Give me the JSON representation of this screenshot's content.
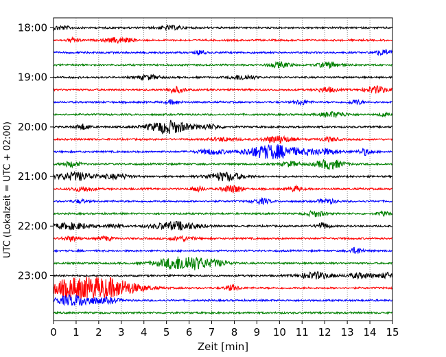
{
  "chart_data": {
    "type": "line",
    "title": "",
    "xlabel": "Zeit  [min]",
    "ylabel": "UTC (Lokalzeit = UTC + 02:00)",
    "xlim": [
      0,
      15
    ],
    "x_ticks": [
      "0",
      "1",
      "2",
      "3",
      "4",
      "5",
      "6",
      "7",
      "8",
      "9",
      "10",
      "11",
      "12",
      "13",
      "14",
      "15"
    ],
    "y_tick_labels": [
      "18:00",
      "19:00",
      "20:00",
      "21:00",
      "22:00",
      "23:00"
    ],
    "grid": "vertical dotted",
    "trace_interval_minutes": 15,
    "trace_start": "18:00",
    "trace_colors": [
      "#000000",
      "#ff0000",
      "#0000ff",
      "#008000"
    ],
    "traces": [
      {
        "start": "18:00",
        "bursts": [
          {
            "t": 0.3,
            "amp": 0.35,
            "dur": 0.4
          },
          {
            "t": 5.2,
            "amp": 0.3,
            "dur": 0.6
          }
        ]
      },
      {
        "start": "18:15",
        "bursts": [
          {
            "t": 0.9,
            "amp": 0.3,
            "dur": 0.3
          },
          {
            "t": 2.9,
            "amp": 0.45,
            "dur": 0.6
          }
        ]
      },
      {
        "start": "18:30",
        "bursts": [
          {
            "t": 6.5,
            "amp": 0.45,
            "dur": 0.2
          },
          {
            "t": 14.6,
            "amp": 0.45,
            "dur": 0.4
          }
        ]
      },
      {
        "start": "18:45",
        "bursts": [
          {
            "t": 10.0,
            "amp": 0.45,
            "dur": 0.5
          },
          {
            "t": 12.2,
            "amp": 0.5,
            "dur": 0.5
          }
        ]
      },
      {
        "start": "19:00",
        "bursts": [
          {
            "t": 4.2,
            "amp": 0.4,
            "dur": 0.5
          },
          {
            "t": 8.4,
            "amp": 0.45,
            "dur": 0.5
          }
        ]
      },
      {
        "start": "19:15",
        "bursts": [
          {
            "t": 5.4,
            "amp": 0.5,
            "dur": 0.4
          },
          {
            "t": 12.1,
            "amp": 0.45,
            "dur": 0.4
          },
          {
            "t": 14.3,
            "amp": 0.6,
            "dur": 0.5
          }
        ]
      },
      {
        "start": "19:30",
        "bursts": [
          {
            "t": 5.3,
            "amp": 0.35,
            "dur": 0.3
          },
          {
            "t": 11.0,
            "amp": 0.45,
            "dur": 0.3
          },
          {
            "t": 13.4,
            "amp": 0.4,
            "dur": 0.3
          }
        ]
      },
      {
        "start": "19:45",
        "bursts": [
          {
            "t": 12.4,
            "amp": 0.45,
            "dur": 0.6
          },
          {
            "t": 14.6,
            "amp": 0.35,
            "dur": 0.2
          }
        ]
      },
      {
        "start": "20:00",
        "bursts": [
          {
            "t": 1.3,
            "amp": 0.5,
            "dur": 0.3
          },
          {
            "t": 5.1,
            "amp": 1.15,
            "dur": 0.9
          },
          {
            "t": 6.9,
            "amp": 0.4,
            "dur": 0.5
          }
        ]
      },
      {
        "start": "20:15",
        "bursts": [
          {
            "t": 7.5,
            "amp": 0.3,
            "dur": 0.6
          },
          {
            "t": 9.9,
            "amp": 0.65,
            "dur": 0.6
          },
          {
            "t": 12.2,
            "amp": 0.35,
            "dur": 0.4
          }
        ]
      },
      {
        "start": "20:30",
        "bursts": [
          {
            "t": 7.0,
            "amp": 0.45,
            "dur": 0.6
          },
          {
            "t": 9.7,
            "amp": 1.25,
            "dur": 1.2
          },
          {
            "t": 11.9,
            "amp": 0.5,
            "dur": 0.8
          },
          {
            "t": 13.8,
            "amp": 0.55,
            "dur": 0.3
          }
        ]
      },
      {
        "start": "20:45",
        "bursts": [
          {
            "t": 0.8,
            "amp": 0.45,
            "dur": 0.4
          },
          {
            "t": 10.5,
            "amp": 0.45,
            "dur": 0.4
          },
          {
            "t": 12.2,
            "amp": 0.85,
            "dur": 0.6
          }
        ]
      },
      {
        "start": "21:00",
        "bursts": [
          {
            "t": 1.0,
            "amp": 0.7,
            "dur": 0.9
          },
          {
            "t": 2.8,
            "amp": 0.4,
            "dur": 0.6
          },
          {
            "t": 7.6,
            "amp": 0.75,
            "dur": 0.8
          }
        ]
      },
      {
        "start": "21:15",
        "bursts": [
          {
            "t": 1.3,
            "amp": 0.4,
            "dur": 0.5
          },
          {
            "t": 6.4,
            "amp": 0.45,
            "dur": 0.3
          },
          {
            "t": 7.7,
            "amp": 0.5,
            "dur": 0.3
          },
          {
            "t": 8.1,
            "amp": 0.5,
            "dur": 0.3
          },
          {
            "t": 10.7,
            "amp": 0.45,
            "dur": 0.3
          }
        ]
      },
      {
        "start": "21:30",
        "bursts": [
          {
            "t": 1.2,
            "amp": 0.3,
            "dur": 0.3
          },
          {
            "t": 9.2,
            "amp": 0.45,
            "dur": 0.4
          },
          {
            "t": 12.1,
            "amp": 0.4,
            "dur": 0.4
          }
        ]
      },
      {
        "start": "21:45",
        "bursts": [
          {
            "t": 11.6,
            "amp": 0.5,
            "dur": 0.4
          },
          {
            "t": 14.6,
            "amp": 0.3,
            "dur": 0.3
          }
        ]
      },
      {
        "start": "22:00",
        "bursts": [
          {
            "t": 0.8,
            "amp": 0.55,
            "dur": 0.9
          },
          {
            "t": 2.7,
            "amp": 0.45,
            "dur": 0.3
          },
          {
            "t": 5.4,
            "amp": 0.75,
            "dur": 1.0
          },
          {
            "t": 11.9,
            "amp": 0.55,
            "dur": 0.3
          }
        ]
      },
      {
        "start": "22:15",
        "bursts": [
          {
            "t": 0.8,
            "amp": 0.4,
            "dur": 0.4
          },
          {
            "t": 2.3,
            "amp": 0.35,
            "dur": 0.3
          },
          {
            "t": 5.7,
            "amp": 0.4,
            "dur": 0.5
          }
        ]
      },
      {
        "start": "22:30",
        "bursts": [
          {
            "t": 13.4,
            "amp": 0.55,
            "dur": 0.3
          }
        ]
      },
      {
        "start": "22:45",
        "bursts": [
          {
            "t": 5.8,
            "amp": 1.35,
            "dur": 1.1
          },
          {
            "t": 7.3,
            "amp": 0.3,
            "dur": 0.6
          }
        ]
      },
      {
        "start": "23:00",
        "bursts": [
          {
            "t": 11.6,
            "amp": 0.6,
            "dur": 0.7
          },
          {
            "t": 13.6,
            "amp": 0.45,
            "dur": 0.6
          },
          {
            "t": 14.8,
            "amp": 0.5,
            "dur": 0.4
          }
        ]
      },
      {
        "start": "23:15",
        "bursts": [
          {
            "t": 0.8,
            "amp": 1.5,
            "dur": 1.2
          },
          {
            "t": 2.5,
            "amp": 1.6,
            "dur": 1.3
          },
          {
            "t": 7.9,
            "amp": 0.5,
            "dur": 0.3
          }
        ]
      },
      {
        "start": "23:30",
        "bursts": [
          {
            "t": 1.0,
            "amp": 0.95,
            "dur": 1.0
          },
          {
            "t": 2.5,
            "amp": 0.35,
            "dur": 0.5
          }
        ]
      },
      {
        "start": "23:45",
        "bursts": []
      }
    ]
  }
}
